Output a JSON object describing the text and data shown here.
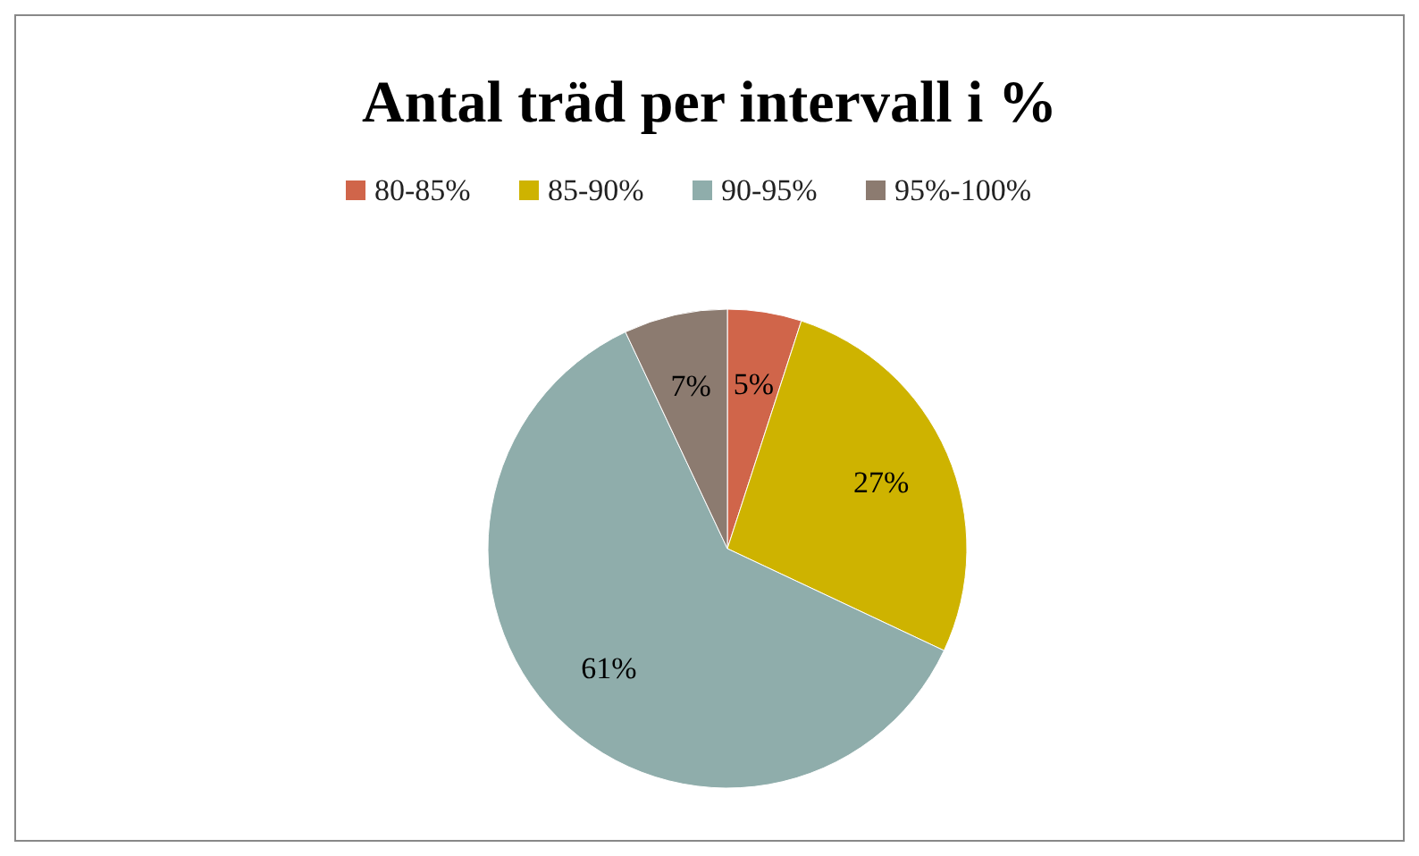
{
  "chart_data": {
    "type": "pie",
    "title": "Antal träd per intervall i %",
    "categories": [
      "80-85%",
      "85-90%",
      "90-95%",
      "95%-100%"
    ],
    "values": [
      5,
      27,
      61,
      7
    ],
    "colors": [
      "#d0654a",
      "#ceb300",
      "#8fadab",
      "#8c7b70"
    ],
    "value_labels": [
      "5%",
      "27%",
      "61%",
      "7%"
    ],
    "legend": "top"
  }
}
